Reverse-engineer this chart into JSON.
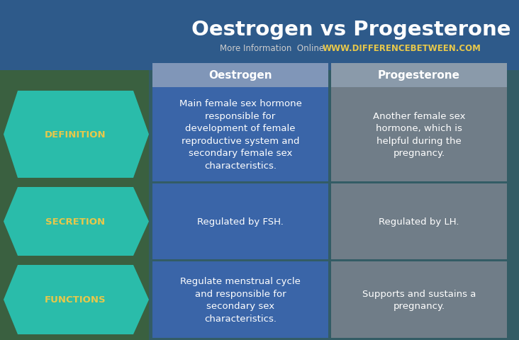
{
  "title": "Oestrogen vs Progesterone",
  "subtitle_plain": "More Information  Online  ",
  "subtitle_url": "WWW.DIFFERENCEBETWEEN.COM",
  "bg_top_color": "#2e5a8a",
  "header_oestrogen_bg": "#8096b8",
  "header_progesterone_bg": "#8a9aaa",
  "oestrogen_cell_bg": "#3a65a8",
  "progesterone_cell_bg": "#707d88",
  "left_label_bg": "#2abcaa",
  "left_label_text": "#e8c84a",
  "header_text": "#ffffff",
  "cell_text": "#ffffff",
  "title_color": "#ffffff",
  "subtitle_plain_color": "#cccccc",
  "subtitle_url_color": "#e8c84a",
  "rows": [
    {
      "label": "DEFINITION",
      "oestrogen": "Main female sex hormone\nresponsible for\ndevelopment of female\nreproductive system and\nsecondary female sex\ncharacteristics.",
      "progesterone": "Another female sex\nhormone, which is\nhelpful during the\npregnancy."
    },
    {
      "label": "SECRETION",
      "oestrogen": "Regulated by FSH.",
      "progesterone": "Regulated by LH."
    },
    {
      "label": "FUNCTIONS",
      "oestrogen": "Regulate menstrual cycle\nand responsible for\nsecondary sex\ncharacteristics.",
      "progesterone": "Supports and sustains a\npregnancy."
    }
  ],
  "figw": 7.32,
  "figh": 4.81,
  "dpi": 100
}
